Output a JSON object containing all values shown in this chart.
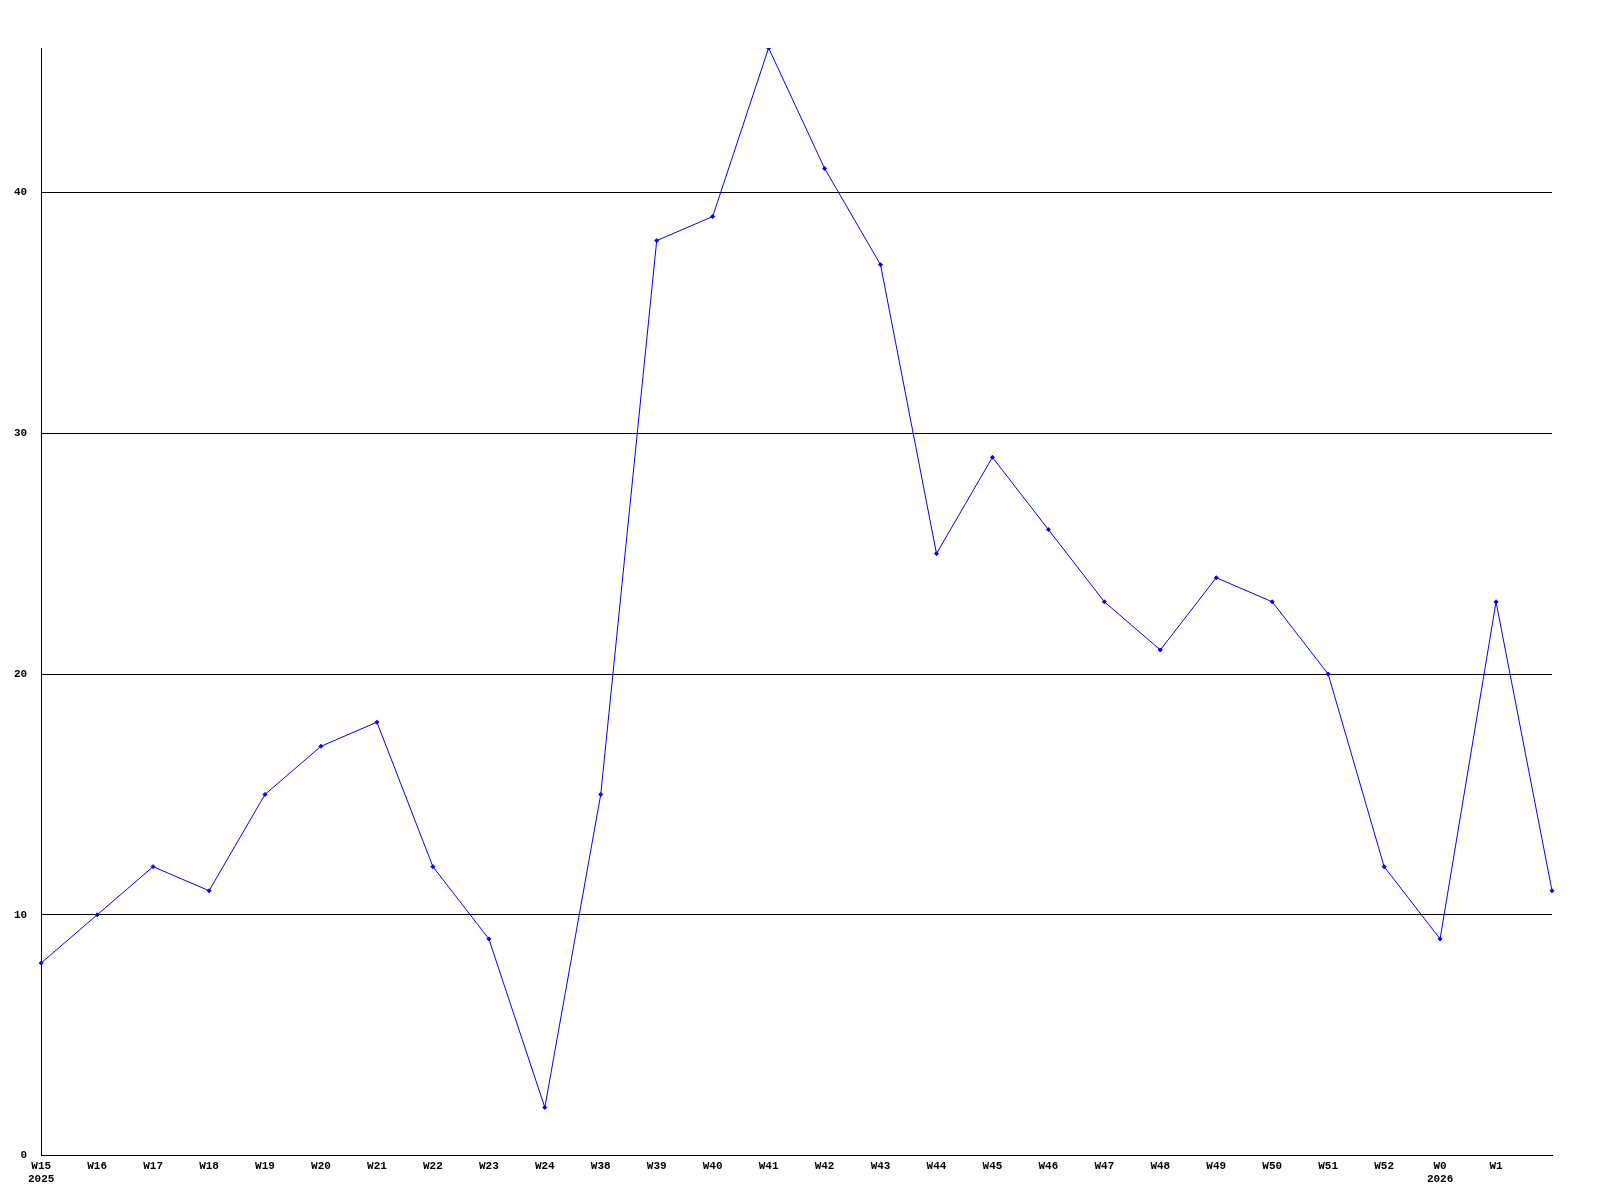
{
  "chart_data": {
    "type": "line",
    "categories": [
      "W15\n2025",
      "W16",
      "W17",
      "W18",
      "W19",
      "W20",
      "W21",
      "W22",
      "W23",
      "W24",
      "W38",
      "W39",
      "W40",
      "W41",
      "W42",
      "W43",
      "W44",
      "W45",
      "W46",
      "W47",
      "W48",
      "W49",
      "W50",
      "W51",
      "W52",
      "W0\n2026",
      "W1",
      null
    ],
    "series": [
      {
        "color": "#0000ff",
        "values": [
          8,
          10,
          12,
          11,
          15,
          17,
          18,
          12,
          9,
          2,
          15,
          38,
          39,
          46,
          41,
          37,
          25,
          29,
          26,
          23,
          21,
          24,
          23,
          20,
          12,
          9,
          23,
          11
        ]
      }
    ],
    "ylim": [
      0,
      46
    ],
    "yticks": [
      0,
      10,
      20,
      30,
      40
    ],
    "grid": "y",
    "legend": false,
    "marker": "diamond",
    "line_style": "solid"
  }
}
